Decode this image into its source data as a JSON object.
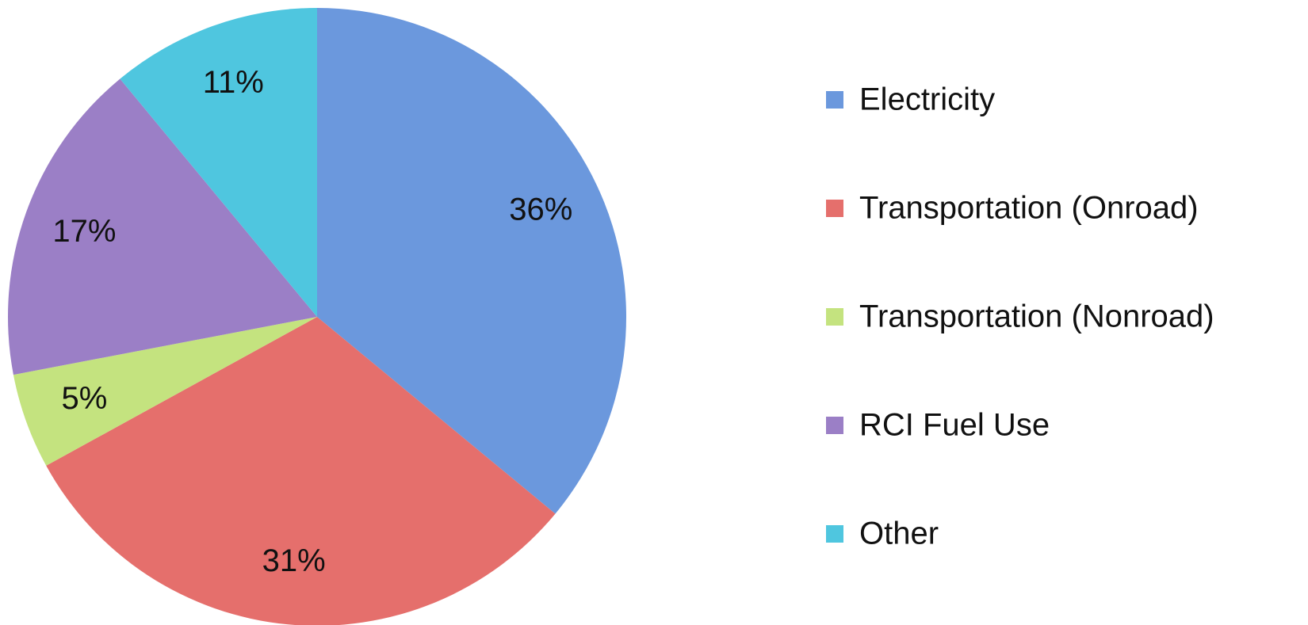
{
  "chart_data": {
    "type": "pie",
    "categories": [
      "Electricity",
      "Transportation (Onroad)",
      "Transportation (Nonroad)",
      "RCI Fuel Use",
      "Other"
    ],
    "values": [
      36,
      31,
      5,
      17,
      11
    ],
    "value_labels": [
      "36%",
      "31%",
      "5%",
      "17%",
      "11%"
    ],
    "colors": [
      "#6b98dd",
      "#e56f6c",
      "#c4e37f",
      "#9b7fc6",
      "#4fc6df"
    ],
    "legend": "right"
  }
}
